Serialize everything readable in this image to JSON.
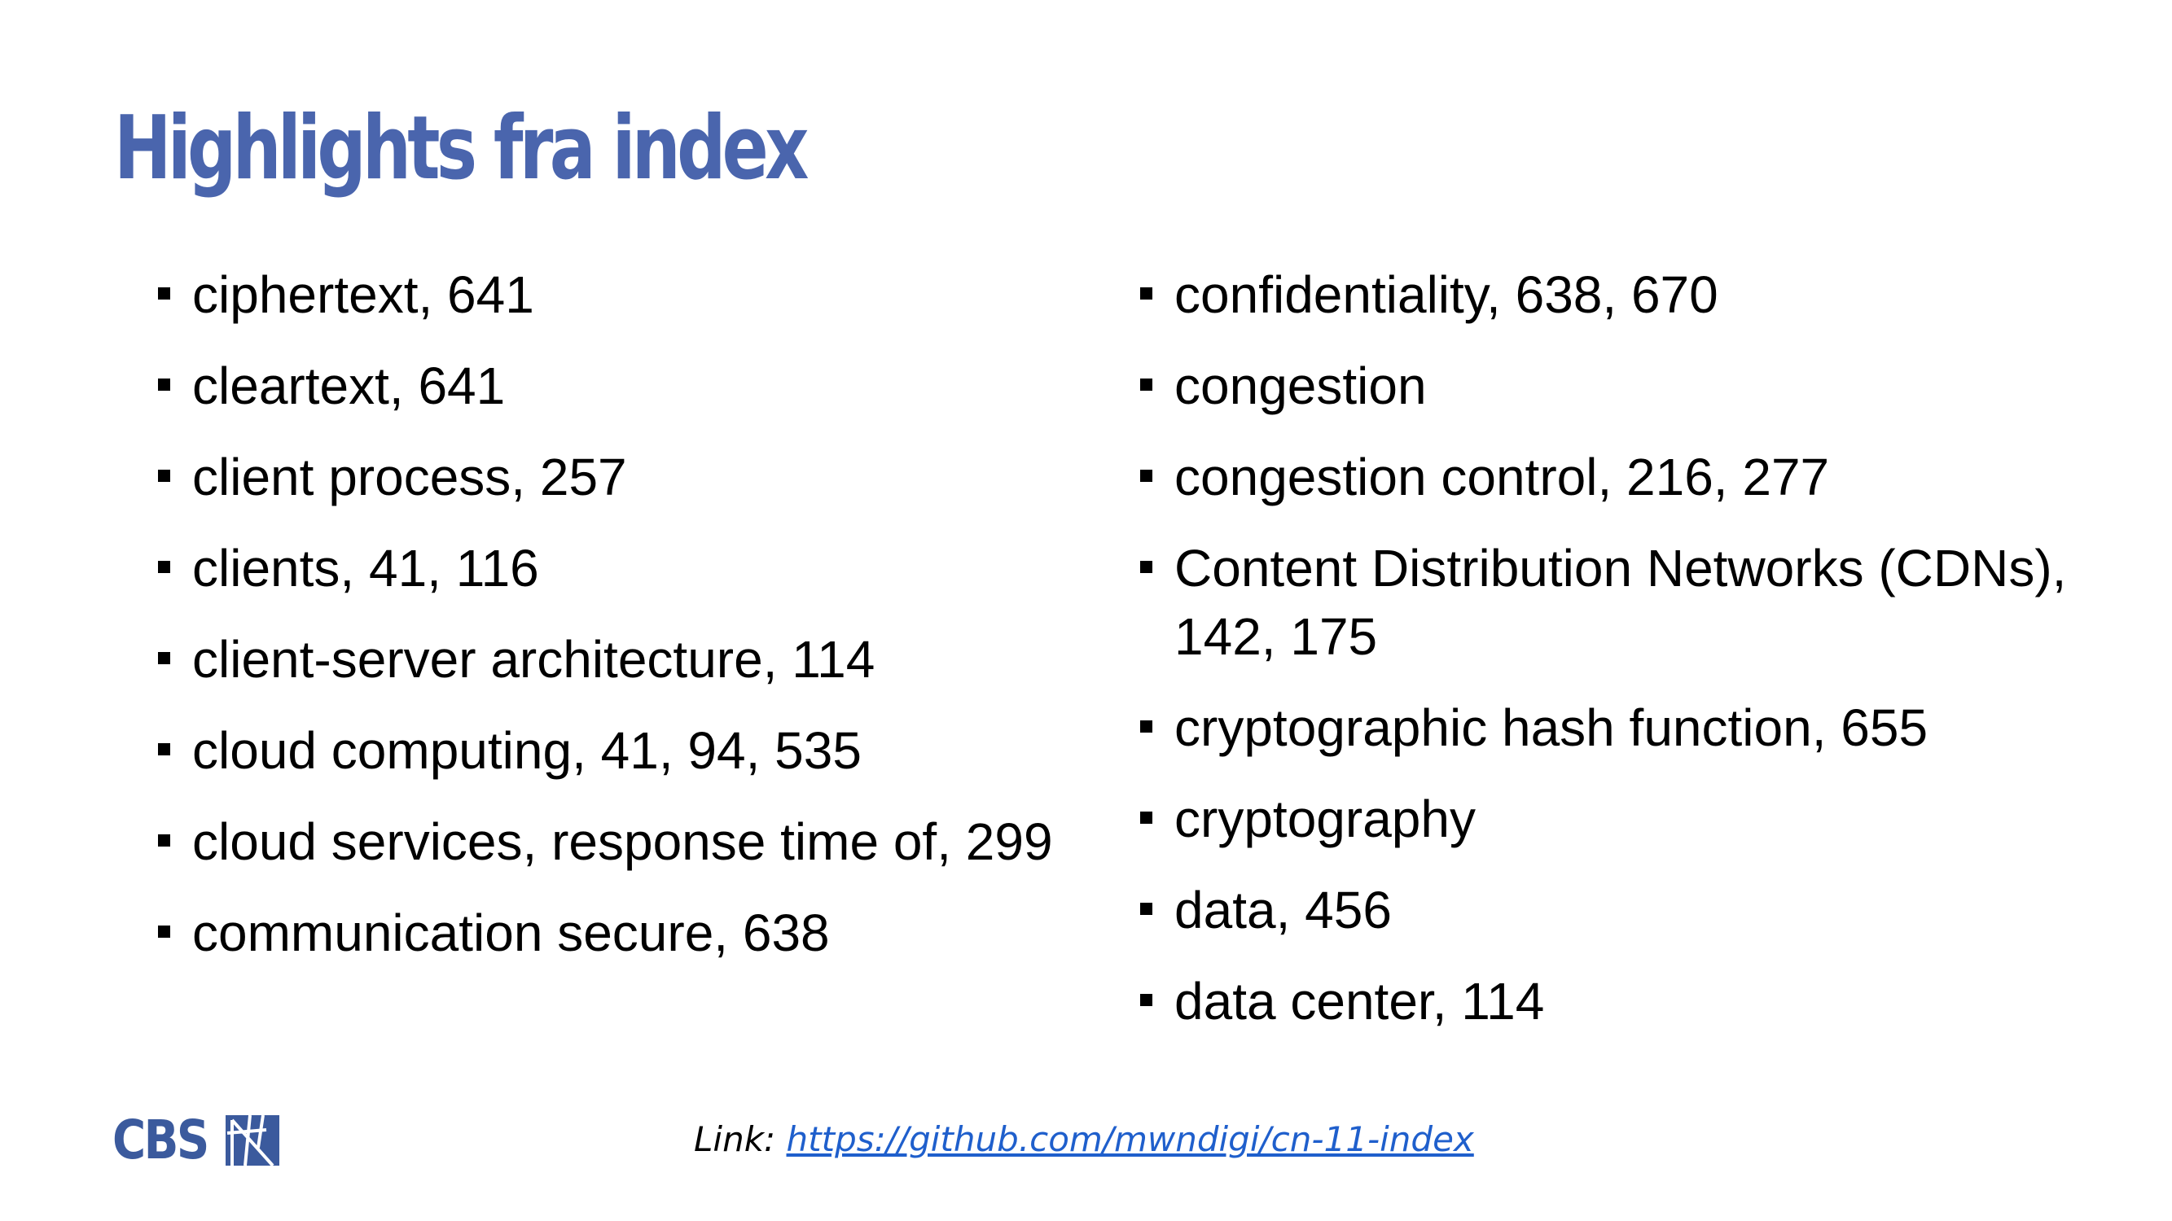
{
  "title": "Highlights fra index",
  "colors": {
    "title": "#4a65ad",
    "text": "#000000",
    "link": "#1f5fcc",
    "logo": "#3b5a9d"
  },
  "left_items": [
    {
      "text": "ciphertext, 641"
    },
    {
      "text": "cleartext, 641"
    },
    {
      "text": "client process, 257"
    },
    {
      "text": "clients, 41, 116"
    },
    {
      "text": "client-server architecture, 114"
    },
    {
      "text": "cloud computing, 41, 94, 535"
    },
    {
      "text": "cloud services, response time of, 299"
    },
    {
      "text": "communication secure, 638"
    }
  ],
  "right_items": [
    {
      "text": "confidentiality, 638, 670"
    },
    {
      "text": "congestion"
    },
    {
      "text": "congestion control, 216, 277"
    },
    {
      "text": "Content Distribution Networks (CDNs), 142, 175"
    },
    {
      "text": "cryptographic hash function, 655"
    },
    {
      "text": "cryptography"
    },
    {
      "text": "data, 456"
    },
    {
      "text": "data center, 114"
    }
  ],
  "footer": {
    "logo_text": "CBS",
    "logo_icon": "cbs-logo-mark",
    "link_label": "Link: ",
    "link_url": "https://github.com/mwndigi/cn-11-index"
  }
}
